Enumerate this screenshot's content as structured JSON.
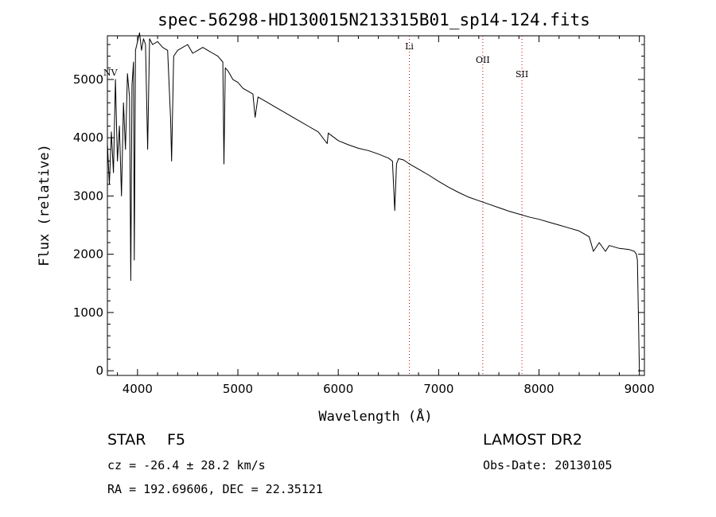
{
  "chart_data": {
    "type": "line",
    "title": "spec-56298-HD130015N213315B01_sp14-124.fits",
    "xlabel": "Wavelength (Å)",
    "ylabel": "Flux (relative)",
    "xlim": [
      3700,
      9050
    ],
    "ylim": [
      -80,
      5750
    ],
    "xticks": [
      4000,
      5000,
      6000,
      7000,
      8000,
      9000
    ],
    "yticks": [
      0,
      1000,
      2000,
      3000,
      4000,
      5000
    ],
    "grid": false,
    "series": [
      {
        "x": [
          3700,
          3720,
          3740,
          3760,
          3780,
          3800,
          3820,
          3840,
          3860,
          3880,
          3900,
          3920,
          3933,
          3945,
          3960,
          3968,
          3980,
          4000,
          4020,
          4040,
          4060,
          4080,
          4101,
          4120,
          4150,
          4200,
          4250,
          4300,
          4330,
          4340,
          4360,
          4400,
          4450,
          4500,
          4550,
          4600,
          4650,
          4700,
          4750,
          4800,
          4850,
          4861,
          4875,
          4900,
          4950,
          5000,
          5050,
          5100,
          5150,
          5172,
          5200,
          5250,
          5300,
          5350,
          5400,
          5450,
          5500,
          5600,
          5700,
          5800,
          5890,
          5900,
          6000,
          6100,
          6200,
          6300,
          6400,
          6500,
          6540,
          6563,
          6580,
          6600,
          6650,
          6700,
          6800,
          6900,
          7000,
          7100,
          7200,
          7300,
          7400,
          7500,
          7600,
          7700,
          7800,
          7900,
          8000,
          8100,
          8200,
          8300,
          8400,
          8500,
          8542,
          8600,
          8662,
          8700,
          8800,
          8900,
          8950,
          8970,
          8980,
          8990,
          9000
        ],
        "y": [
          3900,
          3200,
          4100,
          3400,
          5000,
          3600,
          4200,
          3000,
          4600,
          3800,
          5100,
          4700,
          1550,
          4900,
          5300,
          1900,
          5500,
          5650,
          5800,
          5500,
          5700,
          5600,
          3800,
          5700,
          5600,
          5650,
          5550,
          5500,
          4300,
          3600,
          5400,
          5500,
          5550,
          5600,
          5450,
          5500,
          5550,
          5500,
          5450,
          5400,
          5300,
          3550,
          5200,
          5150,
          5000,
          4950,
          4850,
          4800,
          4750,
          4350,
          4700,
          4650,
          4600,
          4550,
          4500,
          4450,
          4400,
          4300,
          4200,
          4100,
          3900,
          4080,
          3950,
          3880,
          3820,
          3780,
          3720,
          3650,
          3600,
          2750,
          3550,
          3640,
          3620,
          3560,
          3460,
          3360,
          3250,
          3150,
          3060,
          2980,
          2920,
          2860,
          2800,
          2740,
          2690,
          2640,
          2600,
          2550,
          2500,
          2450,
          2400,
          2300,
          2050,
          2200,
          2050,
          2150,
          2100,
          2080,
          2050,
          2000,
          1900,
          1000,
          0
        ]
      }
    ],
    "line_markers": [
      {
        "label": "NV",
        "x": 3730
      },
      {
        "label": "Li",
        "x": 6708
      },
      {
        "label": "OII",
        "x": 7440
      },
      {
        "label": "SII",
        "x": 7830
      }
    ]
  },
  "info": {
    "class_label": "STAR",
    "subclass": "F5",
    "survey": "LAMOST DR2",
    "redshift_line": "cz = -26.4 ± 28.2 km/s",
    "obs_date": "Obs-Date: 20130105",
    "coords": "RA = 192.69606, DEC =  22.35121"
  }
}
